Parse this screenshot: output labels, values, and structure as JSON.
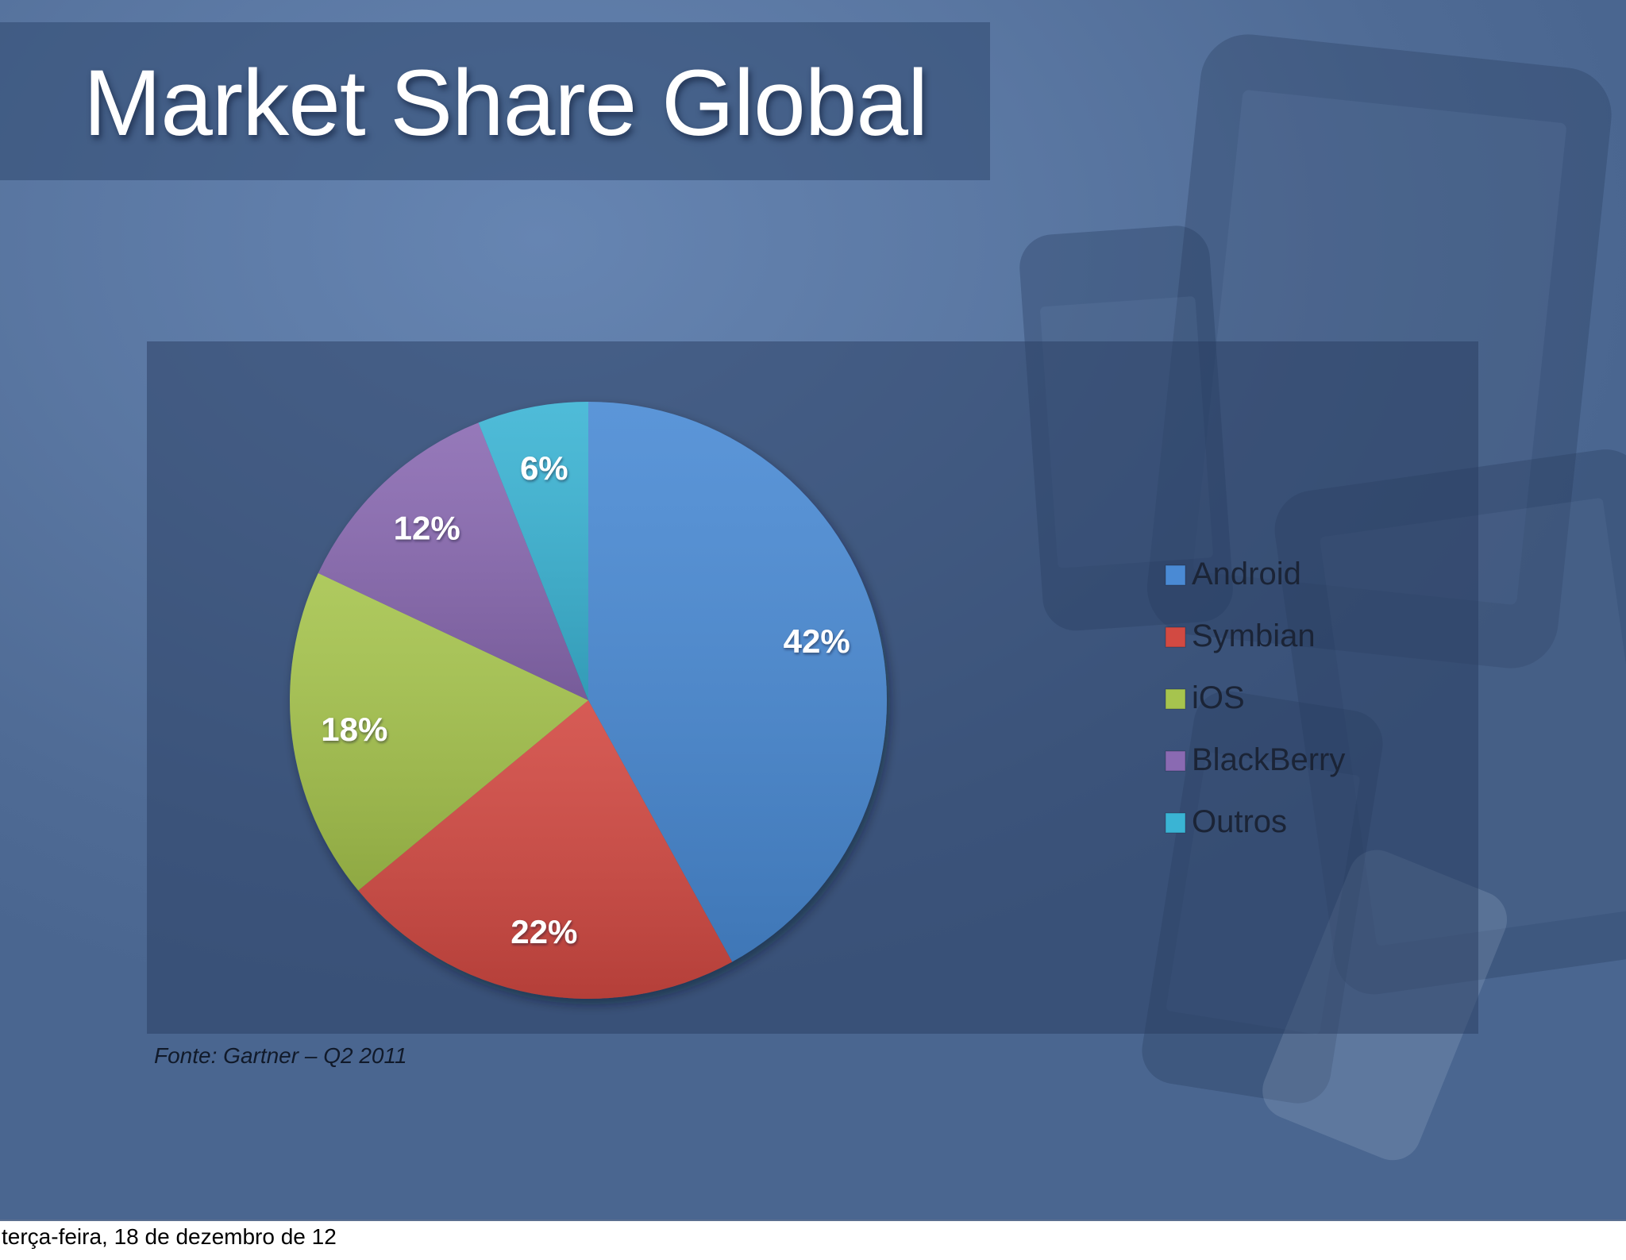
{
  "slide": {
    "title": "Market Share Global",
    "source_note": "Fonte: Gartner – Q2 2011"
  },
  "footer": {
    "date": "terça-feira, 18 de dezembro de 12"
  },
  "chart_data": {
    "type": "pie",
    "categories": [
      "Android",
      "Symbian",
      "iOS",
      "BlackBerry",
      "Outros"
    ],
    "values": [
      42,
      22,
      18,
      12,
      6
    ],
    "data_labels": [
      "42%",
      "22%",
      "18%",
      "12%",
      "6%"
    ],
    "colors": [
      "#4a8ad4",
      "#d24a42",
      "#a6c44e",
      "#8a6ab2",
      "#3ab4d4"
    ],
    "start_angle": "12 o'clock",
    "direction": "clockwise",
    "legend_position": "right"
  }
}
